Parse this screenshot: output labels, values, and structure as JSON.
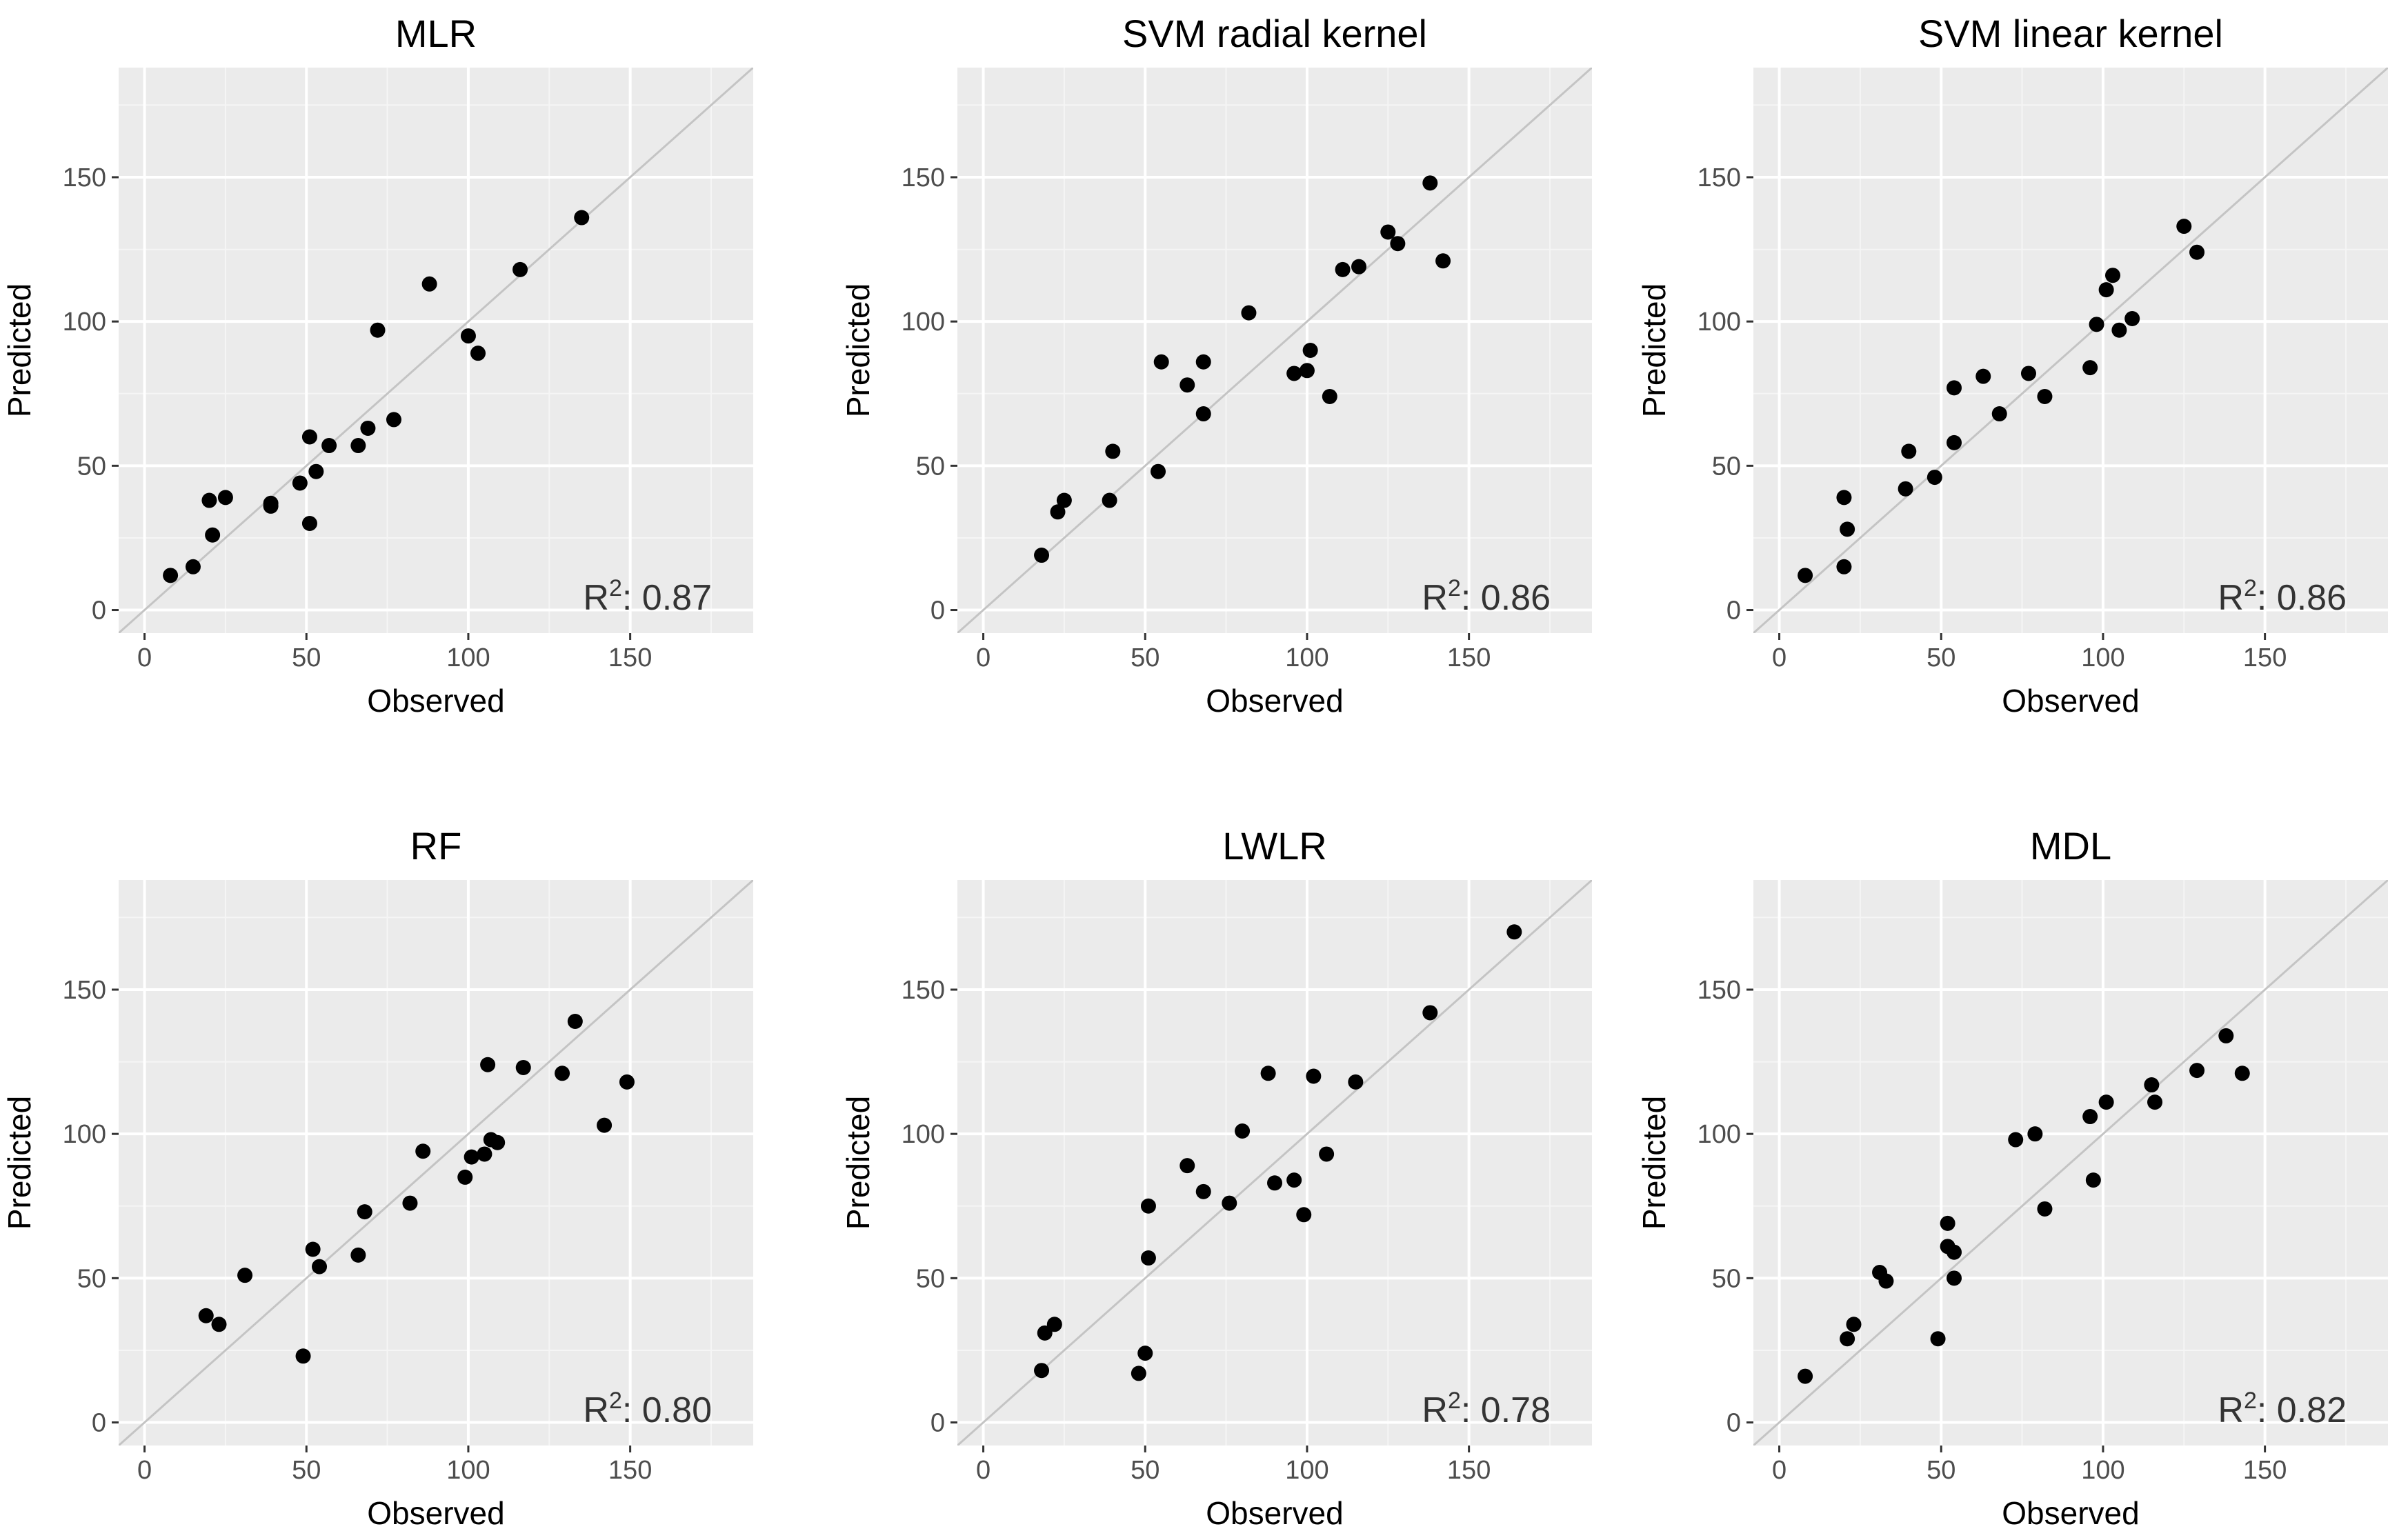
{
  "figure": {
    "panels_per_row": 3
  },
  "colors": {
    "panel_background": "#ebebeb",
    "grid_major": "#ffffff",
    "grid_minor": "#f5f5f5",
    "identity_line": "#c4c4c4",
    "point": "#000000",
    "tick_mark": "#333333"
  },
  "chart_data": [
    {
      "type": "scatter",
      "title": "MLR",
      "xlabel": "Observed",
      "ylabel": "Predicted",
      "xlim": [
        -8,
        188
      ],
      "ylim": [
        -8,
        188
      ],
      "xticks": [
        0,
        50,
        100,
        150
      ],
      "yticks": [
        0,
        50,
        100,
        150
      ],
      "reference_line": "y = x",
      "r2_prefix": "R",
      "r2_sup": "2",
      "r2_value": ": 0.87",
      "points": [
        [
          8,
          12
        ],
        [
          15,
          15
        ],
        [
          20,
          38
        ],
        [
          21,
          26
        ],
        [
          25,
          39
        ],
        [
          39,
          36
        ],
        [
          39,
          37
        ],
        [
          48,
          44
        ],
        [
          51,
          60
        ],
        [
          51,
          30
        ],
        [
          53,
          48
        ],
        [
          57,
          57
        ],
        [
          66,
          57
        ],
        [
          69,
          63
        ],
        [
          72,
          97
        ],
        [
          77,
          66
        ],
        [
          88,
          113
        ],
        [
          100,
          95
        ],
        [
          103,
          89
        ],
        [
          116,
          118
        ],
        [
          135,
          136
        ]
      ]
    },
    {
      "type": "scatter",
      "title": "SVM radial kernel",
      "xlabel": "Observed",
      "ylabel": "Predicted",
      "xlim": [
        -8,
        188
      ],
      "ylim": [
        -8,
        188
      ],
      "xticks": [
        0,
        50,
        100,
        150
      ],
      "yticks": [
        0,
        50,
        100,
        150
      ],
      "reference_line": "y = x",
      "r2_prefix": "R",
      "r2_sup": "2",
      "r2_value": ": 0.86",
      "points": [
        [
          18,
          19
        ],
        [
          23,
          34
        ],
        [
          25,
          38
        ],
        [
          39,
          38
        ],
        [
          40,
          55
        ],
        [
          54,
          48
        ],
        [
          55,
          86
        ],
        [
          63,
          78
        ],
        [
          68,
          68
        ],
        [
          68,
          86
        ],
        [
          82,
          103
        ],
        [
          96,
          82
        ],
        [
          100,
          83
        ],
        [
          101,
          90
        ],
        [
          107,
          74
        ],
        [
          111,
          118
        ],
        [
          116,
          119
        ],
        [
          125,
          131
        ],
        [
          128,
          127
        ],
        [
          138,
          148
        ],
        [
          142,
          121
        ]
      ]
    },
    {
      "type": "scatter",
      "title": "SVM linear kernel",
      "xlabel": "Observed",
      "ylabel": "Predicted",
      "xlim": [
        -8,
        188
      ],
      "ylim": [
        -8,
        188
      ],
      "xticks": [
        0,
        50,
        100,
        150
      ],
      "yticks": [
        0,
        50,
        100,
        150
      ],
      "reference_line": "y = x",
      "r2_prefix": "R",
      "r2_sup": "2",
      "r2_value": ": 0.86",
      "points": [
        [
          8,
          12
        ],
        [
          20,
          15
        ],
        [
          20,
          39
        ],
        [
          21,
          28
        ],
        [
          39,
          42
        ],
        [
          40,
          55
        ],
        [
          48,
          46
        ],
        [
          54,
          58
        ],
        [
          54,
          77
        ],
        [
          63,
          81
        ],
        [
          68,
          68
        ],
        [
          77,
          82
        ],
        [
          82,
          74
        ],
        [
          96,
          84
        ],
        [
          98,
          99
        ],
        [
          101,
          111
        ],
        [
          103,
          116
        ],
        [
          105,
          97
        ],
        [
          109,
          101
        ],
        [
          125,
          133
        ],
        [
          129,
          124
        ]
      ]
    },
    {
      "type": "scatter",
      "title": "RF",
      "xlabel": "Observed",
      "ylabel": "Predicted",
      "xlim": [
        -8,
        188
      ],
      "ylim": [
        -8,
        188
      ],
      "xticks": [
        0,
        50,
        100,
        150
      ],
      "yticks": [
        0,
        50,
        100,
        150
      ],
      "reference_line": "y = x",
      "r2_prefix": "R",
      "r2_sup": "2",
      "r2_value": ": 0.80",
      "points": [
        [
          19,
          37
        ],
        [
          23,
          34
        ],
        [
          31,
          51
        ],
        [
          49,
          23
        ],
        [
          52,
          60
        ],
        [
          54,
          54
        ],
        [
          66,
          58
        ],
        [
          68,
          73
        ],
        [
          82,
          76
        ],
        [
          86,
          94
        ],
        [
          99,
          85
        ],
        [
          101,
          92
        ],
        [
          105,
          93
        ],
        [
          106,
          124
        ],
        [
          107,
          98
        ],
        [
          109,
          97
        ],
        [
          117,
          123
        ],
        [
          129,
          121
        ],
        [
          133,
          139
        ],
        [
          142,
          103
        ],
        [
          149,
          118
        ]
      ]
    },
    {
      "type": "scatter",
      "title": "LWLR",
      "xlabel": "Observed",
      "ylabel": "Predicted",
      "xlim": [
        -8,
        188
      ],
      "ylim": [
        -8,
        188
      ],
      "xticks": [
        0,
        50,
        100,
        150
      ],
      "yticks": [
        0,
        50,
        100,
        150
      ],
      "reference_line": "y = x",
      "r2_prefix": "R",
      "r2_sup": "2",
      "r2_value": ": 0.78",
      "points": [
        [
          18,
          18
        ],
        [
          19,
          31
        ],
        [
          22,
          34
        ],
        [
          48,
          17
        ],
        [
          50,
          24
        ],
        [
          51,
          75
        ],
        [
          51,
          57
        ],
        [
          63,
          89
        ],
        [
          68,
          80
        ],
        [
          76,
          76
        ],
        [
          80,
          101
        ],
        [
          88,
          121
        ],
        [
          90,
          83
        ],
        [
          96,
          84
        ],
        [
          99,
          72
        ],
        [
          102,
          120
        ],
        [
          106,
          93
        ],
        [
          115,
          118
        ],
        [
          138,
          142
        ],
        [
          164,
          170
        ]
      ]
    },
    {
      "type": "scatter",
      "title": "MDL",
      "xlabel": "Observed",
      "ylabel": "Predicted",
      "xlim": [
        -8,
        188
      ],
      "ylim": [
        -8,
        188
      ],
      "xticks": [
        0,
        50,
        100,
        150
      ],
      "yticks": [
        0,
        50,
        100,
        150
      ],
      "reference_line": "y = x",
      "r2_prefix": "R",
      "r2_sup": "2",
      "r2_value": ": 0.82",
      "points": [
        [
          8,
          16
        ],
        [
          21,
          29
        ],
        [
          23,
          34
        ],
        [
          31,
          52
        ],
        [
          33,
          49
        ],
        [
          49,
          29
        ],
        [
          52,
          69
        ],
        [
          52,
          61
        ],
        [
          54,
          59
        ],
        [
          54,
          50
        ],
        [
          73,
          98
        ],
        [
          79,
          100
        ],
        [
          82,
          74
        ],
        [
          96,
          106
        ],
        [
          97,
          84
        ],
        [
          101,
          111
        ],
        [
          115,
          117
        ],
        [
          116,
          111
        ],
        [
          129,
          122
        ],
        [
          138,
          134
        ],
        [
          143,
          121
        ]
      ]
    }
  ]
}
